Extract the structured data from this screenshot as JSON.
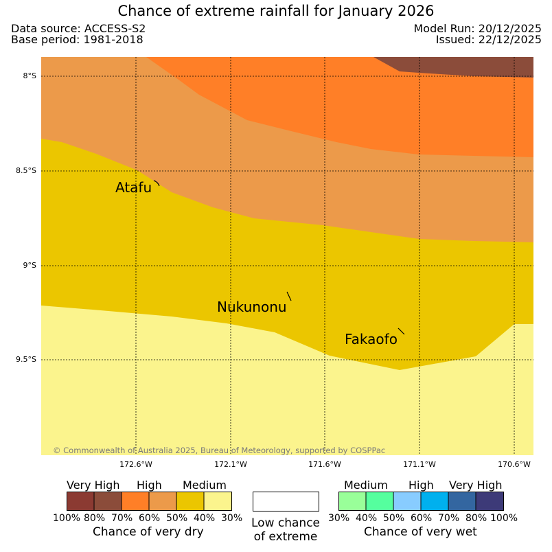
{
  "title": "Chance of extreme rainfall for January 2026",
  "meta": {
    "data_source": "Data source: ACCESS-S2",
    "base_period": "Base period: 1981-2018",
    "model_run": "Model Run: 20/12/2025",
    "issued": "Issued: 22/12/2025"
  },
  "map": {
    "latitude_labels": [
      "8°S",
      "8.5°S",
      "9°S",
      "9.5°S"
    ],
    "longitude_labels": [
      "172.6°W",
      "172.1°W",
      "171.6°W",
      "171.1°W",
      "170.6°W"
    ],
    "places": [
      "Atafu",
      "Nukunonu",
      "Fakaofo"
    ],
    "copyright": "© Commonwealth of Australia 2025, Bureau of Meteorology, supported by COSPPac",
    "zone_colors": {
      "very_high_dry": "#8b4c3a",
      "high_dry": "#ff7f27",
      "high_dry_light": "#ec9a4a",
      "medium_dry": "#ebc600",
      "medium_dry_light": "#fbf48d",
      "low": "#ffffff"
    }
  },
  "legend": {
    "dry": {
      "categories": [
        "Very High",
        "High",
        "Medium"
      ],
      "percent_labels": [
        "100%",
        "80%",
        "70%",
        "60%",
        "50%",
        "40%",
        "30%"
      ],
      "colors": [
        "#8b3a32",
        "#8b4c3a",
        "#ff7f27",
        "#ec9a4a",
        "#ebc600",
        "#fbf48d"
      ],
      "caption": "Chance of very dry"
    },
    "low": {
      "label_line1": "Low chance",
      "label_line2": "of extreme",
      "color": "#ffffff"
    },
    "wet": {
      "categories": [
        "Medium",
        "High",
        "Very High"
      ],
      "percent_labels": [
        "30%",
        "40%",
        "50%",
        "60%",
        "70%",
        "80%",
        "100%"
      ],
      "colors": [
        "#99ff99",
        "#55ff9e",
        "#88ccff",
        "#00b0ee",
        "#3366a0",
        "#3d3a78"
      ],
      "caption": "Chance of very wet"
    }
  }
}
